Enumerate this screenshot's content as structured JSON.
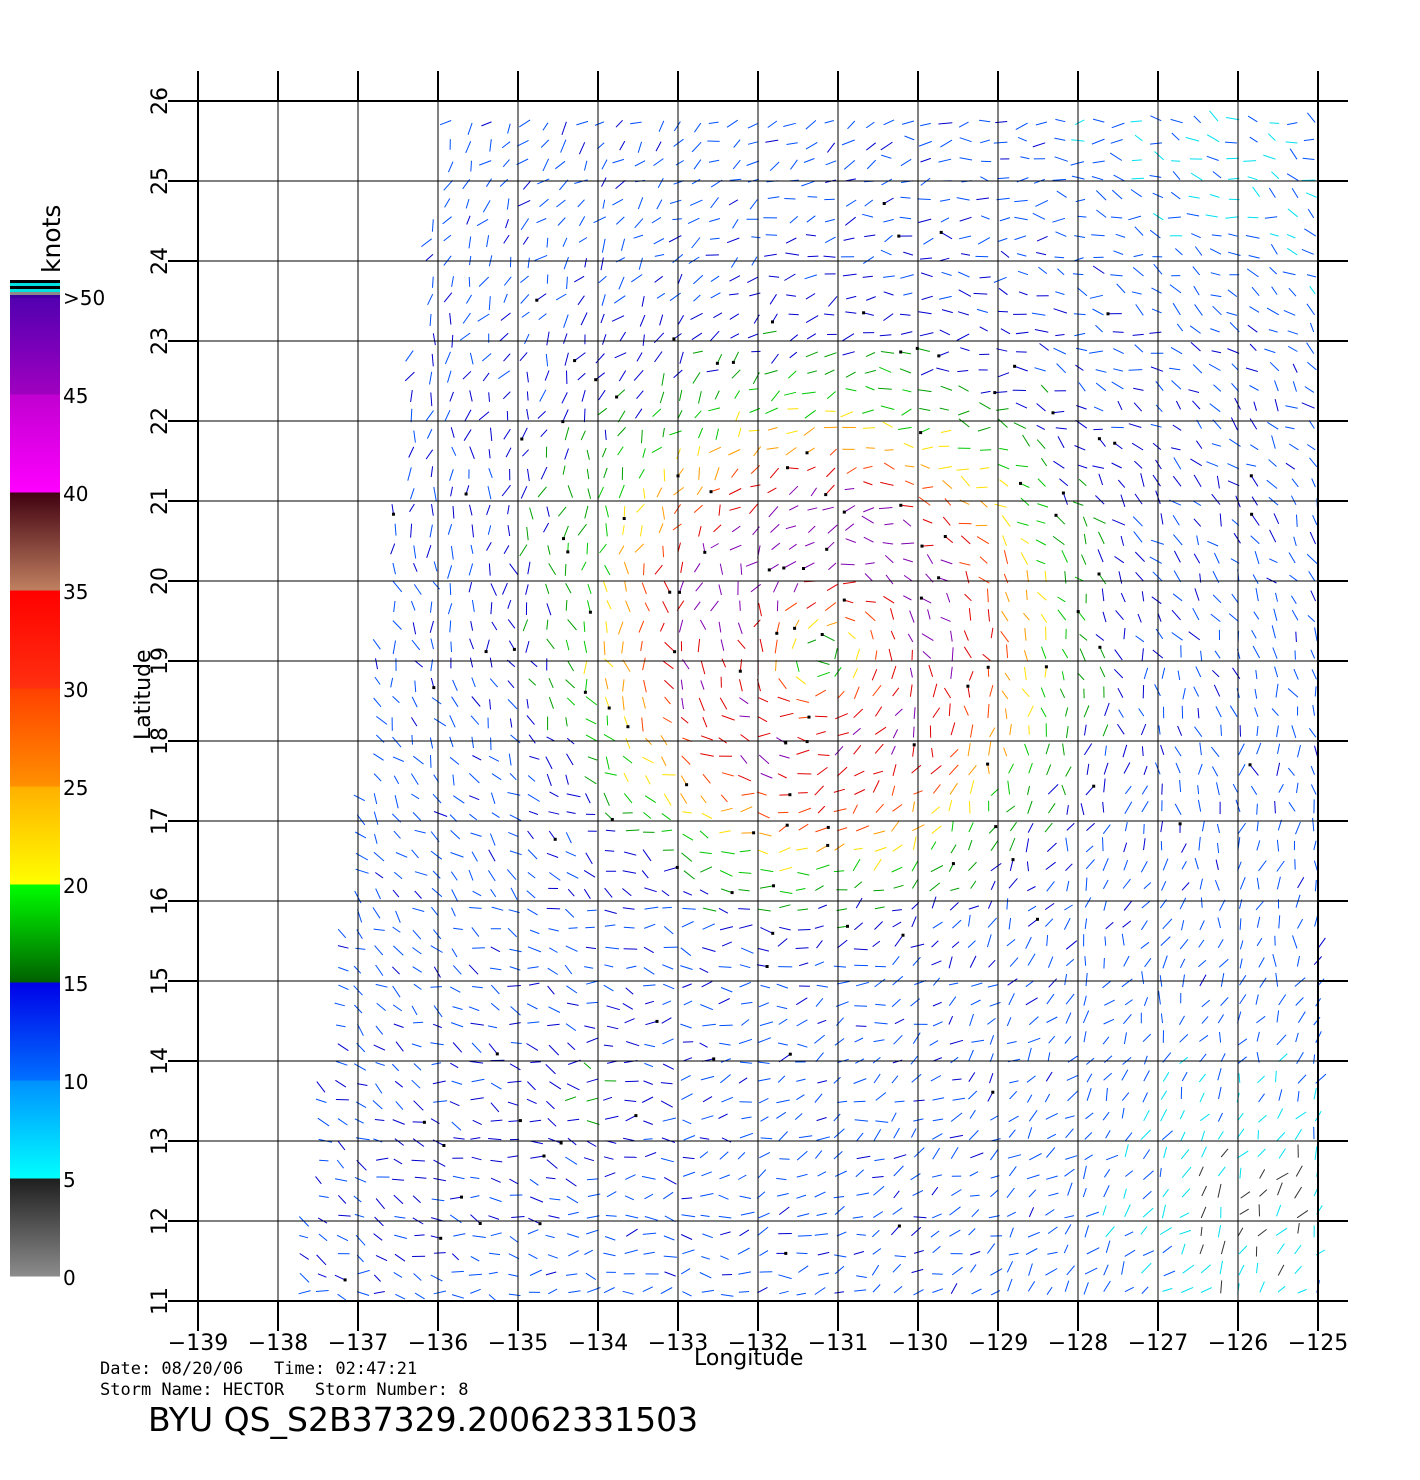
{
  "chart_data": {
    "type": "wind_barb_map",
    "xlabel": "Longitude",
    "ylabel": "Latitude",
    "xlim": [
      -139,
      -125
    ],
    "ylim": [
      11,
      26
    ],
    "x_ticks": [
      "−139",
      "−138",
      "−137",
      "−136",
      "−135",
      "−134",
      "−133",
      "−132",
      "−131",
      "−130",
      "−129",
      "−128",
      "−127",
      "−126",
      "−125"
    ],
    "y_ticks": [
      "11",
      "12",
      "13",
      "14",
      "15",
      "16",
      "17",
      "18",
      "19",
      "20",
      "21",
      "22",
      "23",
      "24",
      "25",
      "26"
    ],
    "grid": true,
    "colorbar": {
      "unit_label": "knots",
      "tick_labels": [
        "0",
        "5",
        "10",
        "15",
        "20",
        "25",
        "30",
        "35",
        "40",
        "45",
        ">50"
      ],
      "bands": [
        {
          "from": 0,
          "to": 5,
          "color_low": "#8c8c8c",
          "color_high": "#1e1e1e"
        },
        {
          "from": 5,
          "to": 10,
          "color_low": "#00ffff",
          "color_high": "#0090ff"
        },
        {
          "from": 10,
          "to": 15,
          "color_low": "#0070ff",
          "color_high": "#0000e8"
        },
        {
          "from": 15,
          "to": 20,
          "color_low": "#006000",
          "color_high": "#00ff00"
        },
        {
          "from": 20,
          "to": 25,
          "color_low": "#ffff00",
          "color_high": "#ffb000"
        },
        {
          "from": 25,
          "to": 30,
          "color_low": "#ff9000",
          "color_high": "#ff4000"
        },
        {
          "from": 30,
          "to": 35,
          "color_low": "#ff3010",
          "color_high": "#ff0000"
        },
        {
          "from": 35,
          "to": 40,
          "color_low": "#c08060",
          "color_high": "#400010"
        },
        {
          "from": 40,
          "to": 45,
          "color_low": "#ff00ff",
          "color_high": "#c000d0"
        },
        {
          "from": 45,
          "to": 50,
          "color_low": "#a000c0",
          "color_high": "#5000b0"
        }
      ]
    },
    "speed_colors": [
      "#333333",
      "#00e0f0",
      "#0050ff",
      "#0000d0",
      "#00a000",
      "#00c800",
      "#ffe000",
      "#ff9c00",
      "#ff4000",
      "#e00000",
      "#8000b0"
    ],
    "swath": {
      "west_edge": [
        [
          -137.9,
          11
        ],
        [
          -135.9,
          26
        ]
      ],
      "east_edge_lon": -124.9
    },
    "wind_field": {
      "description": "QuikSCAT wind vectors around Hurricane Hector",
      "storm_center": [
        -131.2,
        19.1
      ],
      "max_speed_knots": 50
    }
  },
  "info": {
    "date_line": "Date: 08/20/06   Time: 02:47:21",
    "storm_line": "Storm Name: HECTOR   Storm Number: 8",
    "product": "BYU QS_S2B37329.20062331503"
  }
}
